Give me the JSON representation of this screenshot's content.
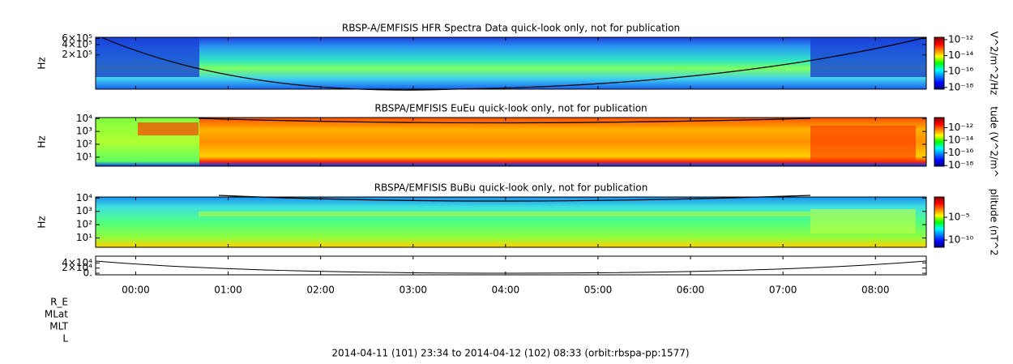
{
  "chart_data": [
    {
      "type": "spectrogram",
      "title": "RBSP-A/EMFISIS  HFR Spectra Data quick-look only, not for publication",
      "ylabel": "Hz",
      "log_y": true,
      "ylim": [
        20000,
        650000
      ],
      "yticks": [
        {
          "value": 200000,
          "label": "2×10⁵"
        },
        {
          "value": 400000,
          "label": "4×10⁵"
        },
        {
          "value": 600000,
          "label": "6×10⁵"
        }
      ],
      "colorbar": {
        "label": "V^2/m^2/Hz",
        "log": true,
        "lim": [
          6e-19,
          2e-12
        ],
        "ticks": [
          {
            "value": 1e-12,
            "label": "10⁻¹²"
          },
          {
            "value": 1e-14,
            "label": "10⁻¹⁴"
          },
          {
            "value": 1e-16,
            "label": "10⁻¹⁶"
          },
          {
            "value": 1e-18,
            "label": "10⁻¹⁸"
          }
        ]
      }
    },
    {
      "type": "spectrogram",
      "title": "RBSPA/EMFISIS  EuEu quick-look only, not for publication",
      "ylabel": "Hz",
      "log_y": true,
      "ylim": [
        2,
        12000
      ],
      "yticks": [
        {
          "value": 10,
          "label": "10¹"
        },
        {
          "value": 100,
          "label": "10²"
        },
        {
          "value": 1000,
          "label": "10³"
        },
        {
          "value": 10000,
          "label": "10⁴"
        }
      ],
      "colorbar": {
        "label": "tude (V^2/m^",
        "log": true,
        "lim": [
          8e-19,
          4e-11
        ],
        "ticks": [
          {
            "value": 1e-12,
            "label": "10⁻¹²"
          },
          {
            "value": 1e-14,
            "label": "10⁻¹⁴"
          },
          {
            "value": 1e-16,
            "label": "10⁻¹⁶"
          },
          {
            "value": 1e-18,
            "label": "10⁻¹⁸"
          }
        ]
      }
    },
    {
      "type": "spectrogram",
      "title": "RBSPA/EMFISIS  BuBu quick-look only, not for publication",
      "ylabel": "Hz",
      "log_y": true,
      "ylim": [
        2,
        12000
      ],
      "yticks": [
        {
          "value": 10,
          "label": "10¹"
        },
        {
          "value": 100,
          "label": "10²"
        },
        {
          "value": 1000,
          "label": "10³"
        },
        {
          "value": 10000,
          "label": "10⁴"
        }
      ],
      "colorbar": {
        "label": "plitude (nT^2",
        "log": true,
        "lim": [
          2.5e-12,
          0.3
        ],
        "ticks": [
          {
            "value": 1e-05,
            "label": "10⁻⁵"
          },
          {
            "value": 1e-10,
            "label": "10⁻¹⁰"
          }
        ]
      }
    },
    {
      "type": "line",
      "log_y": false,
      "ylim": [
        -6000,
        66000
      ],
      "yticks": [
        {
          "value": 0,
          "label": "0."
        },
        {
          "value": 20000,
          "label": "2×10⁴"
        },
        {
          "value": 40000,
          "label": "4×10⁴"
        }
      ]
    }
  ],
  "x_axis": {
    "xlim": [
      "2014-04-11T23:34",
      "2014-04-12T08:33"
    ],
    "xticks": [
      {
        "value": "2014-04-12T00:00",
        "label": "00:00"
      },
      {
        "value": "2014-04-12T01:00",
        "label": "01:00"
      },
      {
        "value": "2014-04-12T02:00",
        "label": "02:00"
      },
      {
        "value": "2014-04-12T03:00",
        "label": "03:00"
      },
      {
        "value": "2014-04-12T04:00",
        "label": "04:00"
      },
      {
        "value": "2014-04-12T05:00",
        "label": "05:00"
      },
      {
        "value": "2014-04-12T06:00",
        "label": "06:00"
      },
      {
        "value": "2014-04-12T07:00",
        "label": "07:00"
      },
      {
        "value": "2014-04-12T08:00",
        "label": "08:00"
      }
    ]
  },
  "ephemeris_labels": [
    "R_E",
    "MLat",
    "MLT",
    "L"
  ],
  "footer": "2014-04-11 (101) 23:34 to 2014-04-12 (102) 08:33 (orbit:rbspa-pp:1577)"
}
